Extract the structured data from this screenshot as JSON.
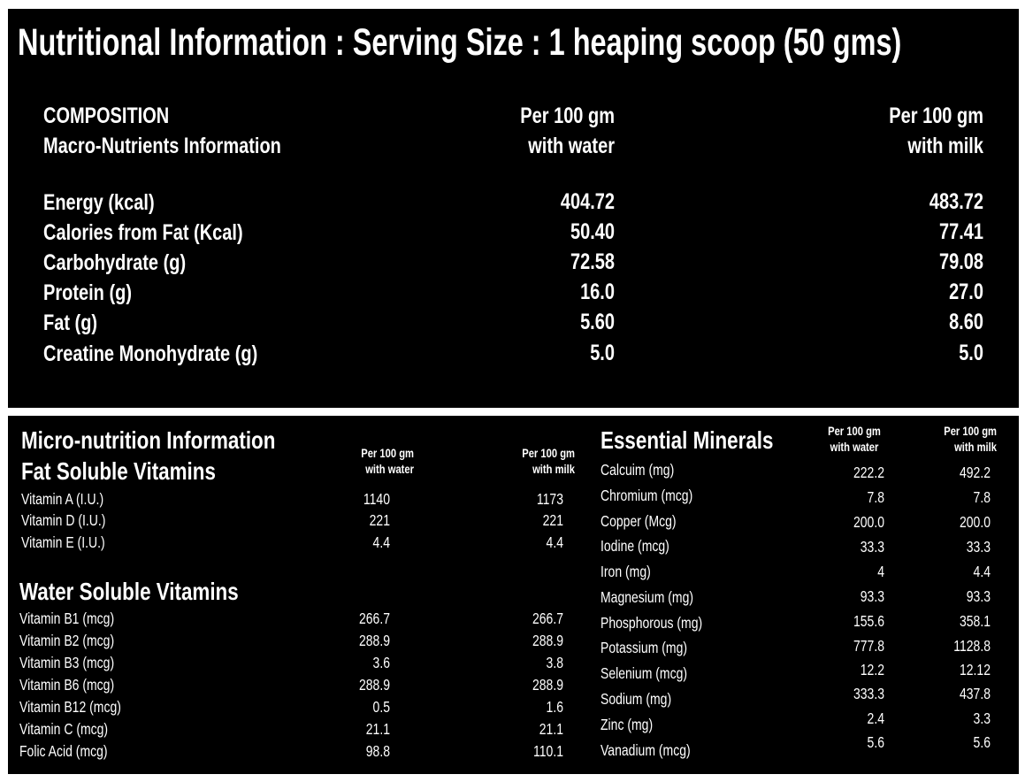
{
  "title": "Nutritional Information : Serving Size : 1 heaping scoop (50 gms)",
  "macro": {
    "heading_line1": "COMPOSITION",
    "heading_line2": "Macro-Nutrients Information",
    "col_water_line1": "Per 100 gm",
    "col_water_line2": "with water",
    "col_milk_line1": "Per 100 gm",
    "col_milk_line2": "with milk",
    "rows": [
      {
        "label": "Energy (kcal)",
        "water": "404.72",
        "milk": "483.72"
      },
      {
        "label": "Calories from Fat (Kcal)",
        "water": "50.40",
        "milk": "77.41"
      },
      {
        "label": "Carbohydrate  (g)",
        "water": "72.58",
        "milk": "79.08"
      },
      {
        "label": "Protein (g)",
        "water": "16.0",
        "milk": "27.0"
      },
      {
        "label": "Fat (g)",
        "water": "5.60",
        "milk": "8.60"
      },
      {
        "label": "Creatine Monohydrate (g)",
        "water": "5.0",
        "milk": "5.0"
      }
    ]
  },
  "micro": {
    "heading": "Micro-nutrition Information",
    "fat_heading": "Fat Soluble Vitamins",
    "col_water_line1": "Per 100 gm",
    "col_water_line2": "with water",
    "col_milk_line1": "Per 100 gm",
    "col_milk_line2": "with milk",
    "fat_rows": [
      {
        "label": "Vitamin A (I.U.)",
        "water": "1140",
        "milk": "1173"
      },
      {
        "label": "Vitamin D (I.U.)",
        "water": "221",
        "milk": "221"
      },
      {
        "label": "Vitamin E (I.U.)",
        "water": "4.4",
        "milk": "4.4"
      }
    ],
    "water_heading": "Water Soluble Vitamins",
    "water_rows": [
      {
        "label": "Vitamin B1 (mcg)",
        "water": "266.7",
        "milk": "266.7"
      },
      {
        "label": "Vitamin B2 (mcg)",
        "water": "288.9",
        "milk": "288.9"
      },
      {
        "label": "Vitamin B3 (mcg)",
        "water": "3.6",
        "milk": "3.8"
      },
      {
        "label": "Vitamin B6 (mcg)",
        "water": "288.9",
        "milk": "288.9"
      },
      {
        "label": "Vitamin B12 (mcg)",
        "water": "0.5",
        "milk": "1.6"
      },
      {
        "label": "Vitamin C (mcg)",
        "water": "21.1",
        "milk": "21.1"
      },
      {
        "label": "Folic Acid (mcg)",
        "water": "98.8",
        "milk": "110.1"
      }
    ]
  },
  "minerals": {
    "heading": "Essential Minerals",
    "col_water_line1": "Per 100 gm",
    "col_water_line2": "with water",
    "col_milk_line1": "Per 100 gm",
    "col_milk_line2": "with milk",
    "rows": [
      {
        "label": "Calcuim (mg)",
        "water": "222.2",
        "milk": "492.2"
      },
      {
        "label": "Chromium (mcg)",
        "water": "7.8",
        "milk": "7.8"
      },
      {
        "label": "Copper (Mcg)",
        "water": "200.0",
        "milk": "200.0"
      },
      {
        "label": "Iodine (mcg)",
        "water": "33.3",
        "milk": "33.3"
      },
      {
        "label": "Iron (mg)",
        "water": "4",
        "milk": "4.4"
      },
      {
        "label": "Magnesium (mg)",
        "water": "93.3",
        "milk": "93.3"
      },
      {
        "label": "Phosphorous (mg)",
        "water": "155.6",
        "milk": "358.1"
      },
      {
        "label": "Potassium (mg)",
        "water": "777.8",
        "milk": "1128.8"
      },
      {
        "label": "Selenium (mcg)",
        "water": "12.2",
        "milk": "12.12"
      },
      {
        "label": "Sodium (mg)",
        "water": "333.3",
        "milk": "437.8"
      },
      {
        "label": "Zinc (mg)",
        "water": "2.4",
        "milk": "3.3"
      },
      {
        "label": "Vanadium (mcg)",
        "water": "5.6",
        "milk": "5.6"
      }
    ]
  }
}
